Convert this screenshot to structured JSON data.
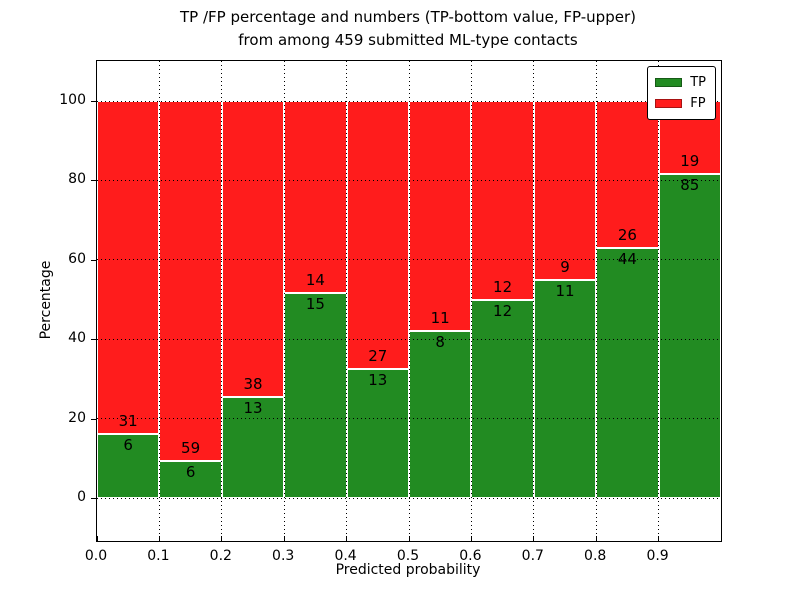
{
  "figure": {
    "title_line1": "TP /FP percentage and numbers (TP-bottom value, FP-upper)",
    "title_line2": "from among 459 submitted ML-type contacts"
  },
  "chart_data": {
    "type": "bar",
    "stacked": true,
    "normalized_to_percent": true,
    "title": "TP /FP percentage and numbers (TP-bottom value, FP-upper) from among 459 submitted ML-type contacts",
    "xlabel": "Predicted probability",
    "ylabel": "Percentage",
    "total_contacts": 459,
    "categories": [
      "0.0-0.1",
      "0.1-0.2",
      "0.2-0.3",
      "0.3-0.4",
      "0.4-0.5",
      "0.5-0.6",
      "0.6-0.7",
      "0.7-0.8",
      "0.8-0.9",
      "0.9-1.0"
    ],
    "x_tick_labels": [
      "0.0",
      "0.1",
      "0.2",
      "0.3",
      "0.4",
      "0.5",
      "0.6",
      "0.7",
      "0.8",
      "0.9"
    ],
    "y_ticks": [
      0,
      20,
      40,
      60,
      80,
      100
    ],
    "xlim": [
      0.0,
      1.0
    ],
    "ylim": [
      -10.8,
      110.1
    ],
    "grid": "dotted",
    "legend_position": "upper right",
    "series": [
      {
        "name": "TP",
        "color": "#228b22",
        "position": "bottom",
        "counts": [
          6,
          6,
          13,
          15,
          13,
          8,
          12,
          11,
          44,
          85
        ]
      },
      {
        "name": "FP",
        "color": "#ff1c1c",
        "position": "top",
        "counts": [
          31,
          59,
          38,
          14,
          27,
          11,
          12,
          9,
          26,
          19
        ]
      }
    ],
    "tp_percent_per_bin": [
      16.2,
      9.2,
      25.5,
      51.7,
      32.5,
      42.1,
      50.0,
      55.0,
      62.9,
      81.7
    ]
  }
}
